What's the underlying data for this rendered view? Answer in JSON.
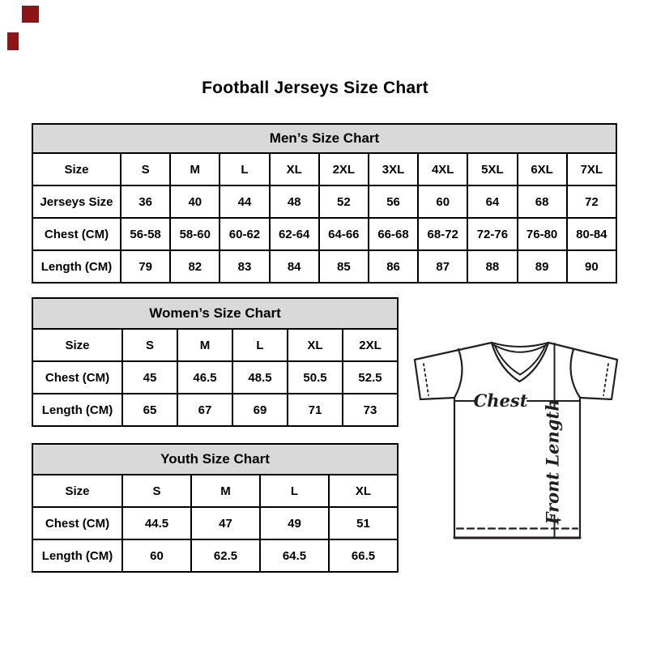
{
  "page_title": "Football Jerseys Size Chart",
  "colors": {
    "table_header_bg": "#d9d9d9",
    "table_border": "#000000",
    "corner_mark": "#8a1715",
    "diagram_stroke": "#231f20"
  },
  "tables": [
    {
      "id": "mens",
      "title": "Men’s Size Chart",
      "rows": [
        [
          "Size",
          "S",
          "M",
          "L",
          "XL",
          "2XL",
          "3XL",
          "4XL",
          "5XL",
          "6XL",
          "7XL"
        ],
        [
          "Jerseys Size",
          "36",
          "40",
          "44",
          "48",
          "52",
          "56",
          "60",
          "64",
          "68",
          "72"
        ],
        [
          "Chest (CM)",
          "56-58",
          "58-60",
          "60-62",
          "62-64",
          "64-66",
          "66-68",
          "68-72",
          "72-76",
          "76-80",
          "80-84"
        ],
        [
          "Length (CM)",
          "79",
          "82",
          "83",
          "84",
          "85",
          "86",
          "87",
          "88",
          "89",
          "90"
        ]
      ]
    },
    {
      "id": "womens",
      "title": "Women’s Size Chart",
      "rows": [
        [
          "Size",
          "S",
          "M",
          "L",
          "XL",
          "2XL"
        ],
        [
          "Chest (CM)",
          "45",
          "46.5",
          "48.5",
          "50.5",
          "52.5"
        ],
        [
          "Length (CM)",
          "65",
          "67",
          "69",
          "71",
          "73"
        ]
      ]
    },
    {
      "id": "youth",
      "title": "Youth Size Chart",
      "rows": [
        [
          "Size",
          "S",
          "M",
          "L",
          "XL"
        ],
        [
          "Chest (CM)",
          "44.5",
          "47",
          "49",
          "51"
        ],
        [
          "Length (CM)",
          "60",
          "62.5",
          "64.5",
          "66.5"
        ]
      ]
    }
  ],
  "diagram": {
    "chest_label": "Chest",
    "front_length_label": "Front Length"
  }
}
